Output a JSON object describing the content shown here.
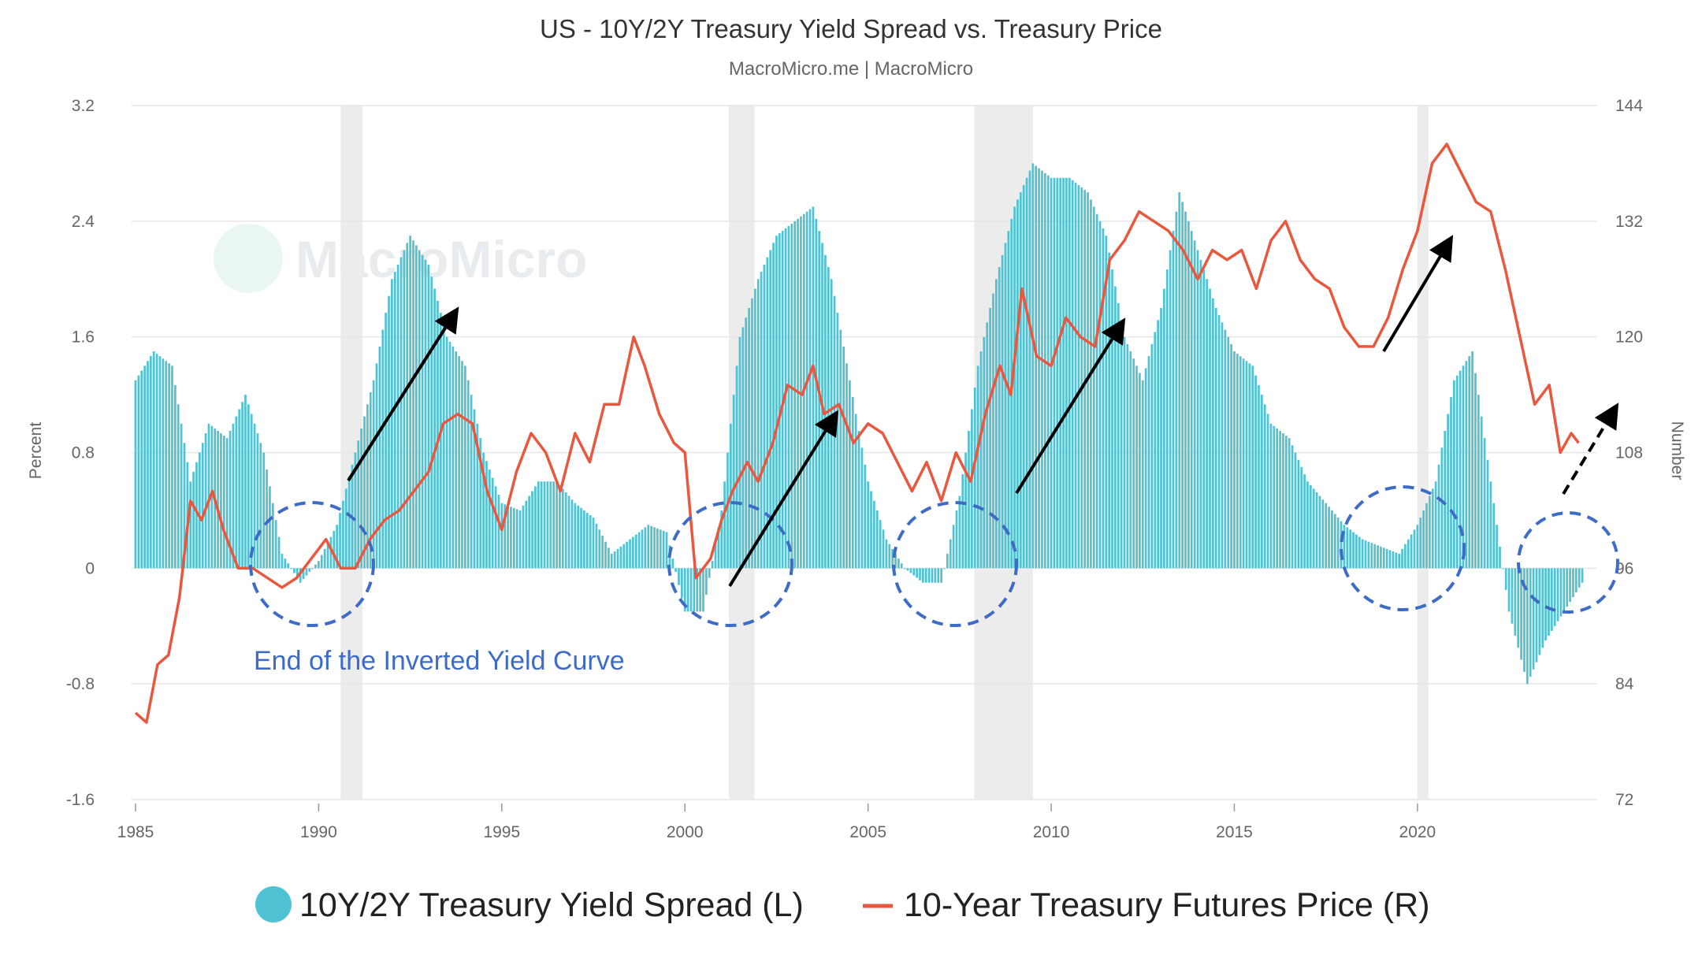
{
  "title": "US - 10Y/2Y Treasury Yield Spread vs. Treasury Price",
  "subtitle": "MacroMicro.me | MacroMicro",
  "watermark": "MacroMicro",
  "annotation": "End of the Inverted Yield Curve",
  "colors": {
    "spread": "#4fc3d3",
    "price": "#e9573f",
    "recession": "#ececec",
    "circle": "#3d6cc7",
    "arrow": "#000000",
    "grid": "#e6e6e6"
  },
  "chart_data": {
    "type": "bar+line",
    "xlabel": "",
    "ylabel_left": "Percent",
    "ylabel_right": "Number",
    "xlim": [
      1985,
      2024.8
    ],
    "ylim_left": [
      -1.6,
      3.2
    ],
    "ylim_right": [
      72,
      144
    ],
    "x_ticks": [
      "1985",
      "1990",
      "1995",
      "2000",
      "2005",
      "2010",
      "2015",
      "2020"
    ],
    "y_ticks_left": [
      "3.2",
      "2.4",
      "1.6",
      "0.8",
      "0",
      "-0.8",
      "-1.6"
    ],
    "y_ticks_right": [
      "144",
      "132",
      "120",
      "108",
      "96",
      "84",
      "72"
    ],
    "grid": true,
    "legend_position": "bottom",
    "recessions": [
      [
        1990.6,
        1991.2
      ],
      [
        2001.2,
        2001.9
      ],
      [
        2007.9,
        2009.5
      ],
      [
        2020.0,
        2020.3
      ]
    ],
    "series": [
      {
        "name": "10Y/2Y Treasury Yield Spread (L)",
        "type": "bar",
        "x": [
          1985.0,
          1985.5,
          1986.0,
          1986.5,
          1987.0,
          1987.5,
          1988.0,
          1988.5,
          1989.0,
          1989.5,
          1990.0,
          1990.5,
          1991.0,
          1991.5,
          1992.0,
          1992.5,
          1993.0,
          1993.5,
          1994.0,
          1994.5,
          1995.0,
          1995.5,
          1996.0,
          1996.5,
          1997.0,
          1997.5,
          1998.0,
          1998.5,
          1999.0,
          1999.5,
          2000.0,
          2000.5,
          2001.0,
          2001.5,
          2002.0,
          2002.5,
          2003.0,
          2003.5,
          2004.0,
          2004.5,
          2005.0,
          2005.5,
          2006.0,
          2006.5,
          2007.0,
          2007.5,
          2008.0,
          2008.5,
          2009.0,
          2009.5,
          2010.0,
          2010.5,
          2011.0,
          2011.5,
          2012.0,
          2012.5,
          2013.0,
          2013.5,
          2014.0,
          2014.5,
          2015.0,
          2015.5,
          2016.0,
          2016.5,
          2017.0,
          2017.5,
          2018.0,
          2018.5,
          2019.0,
          2019.5,
          2020.0,
          2020.5,
          2021.0,
          2021.5,
          2022.0,
          2022.5,
          2023.0,
          2023.5,
          2024.0,
          2024.5
        ],
        "values": [
          1.3,
          1.5,
          1.4,
          0.6,
          1.0,
          0.9,
          1.2,
          0.8,
          0.1,
          -0.1,
          0.05,
          0.3,
          0.8,
          1.3,
          2.0,
          2.3,
          2.1,
          1.6,
          1.4,
          0.8,
          0.45,
          0.4,
          0.6,
          0.6,
          0.45,
          0.35,
          0.1,
          0.2,
          0.3,
          0.25,
          -0.3,
          -0.3,
          0.4,
          1.6,
          2.0,
          2.3,
          2.4,
          2.5,
          2.0,
          1.3,
          0.6,
          0.2,
          0.0,
          -0.1,
          -0.1,
          0.5,
          1.4,
          2.0,
          2.5,
          2.8,
          2.7,
          2.7,
          2.6,
          2.3,
          1.6,
          1.3,
          1.8,
          2.6,
          2.2,
          1.8,
          1.5,
          1.4,
          1.0,
          0.9,
          0.6,
          0.45,
          0.3,
          0.2,
          0.15,
          0.1,
          0.3,
          0.6,
          1.3,
          1.5,
          0.6,
          -0.3,
          -0.8,
          -0.5,
          -0.3,
          -0.1
        ]
      },
      {
        "name": "10-Year Treasury Futures Price (R)",
        "type": "line",
        "x": [
          1985.0,
          1985.3,
          1985.6,
          1985.9,
          1986.2,
          1986.5,
          1986.8,
          1987.1,
          1987.4,
          1987.8,
          1988.2,
          1988.6,
          1989.0,
          1989.4,
          1989.8,
          1990.2,
          1990.6,
          1991.0,
          1991.4,
          1991.8,
          1992.2,
          1992.6,
          1993.0,
          1993.4,
          1993.8,
          1994.2,
          1994.6,
          1995.0,
          1995.4,
          1995.8,
          1996.2,
          1996.6,
          1997.0,
          1997.4,
          1997.8,
          1998.2,
          1998.6,
          1998.9,
          1999.3,
          1999.7,
          2000.0,
          2000.3,
          2000.7,
          2001.0,
          2001.3,
          2001.7,
          2002.0,
          2002.4,
          2002.8,
          2003.2,
          2003.5,
          2003.8,
          2004.2,
          2004.6,
          2005.0,
          2005.4,
          2005.8,
          2006.2,
          2006.6,
          2007.0,
          2007.4,
          2007.8,
          2008.2,
          2008.6,
          2008.9,
          2009.2,
          2009.6,
          2010.0,
          2010.4,
          2010.8,
          2011.2,
          2011.6,
          2012.0,
          2012.4,
          2012.8,
          2013.2,
          2013.6,
          2014.0,
          2014.4,
          2014.8,
          2015.2,
          2015.6,
          2016.0,
          2016.4,
          2016.8,
          2017.2,
          2017.6,
          2018.0,
          2018.4,
          2018.8,
          2019.2,
          2019.6,
          2020.0,
          2020.4,
          2020.8,
          2021.2,
          2021.6,
          2022.0,
          2022.4,
          2022.8,
          2023.2,
          2023.6,
          2023.9,
          2024.2,
          2024.4
        ],
        "values": [
          81,
          80,
          86,
          87,
          93,
          103,
          101,
          104,
          100,
          96,
          96,
          95,
          94,
          95,
          97,
          99,
          96,
          96,
          99,
          101,
          102,
          104,
          106,
          111,
          112,
          111,
          104,
          100,
          106,
          110,
          108,
          104,
          110,
          107,
          113,
          113,
          120,
          117,
          112,
          109,
          108,
          95,
          97,
          101,
          104,
          107,
          105,
          109,
          115,
          114,
          117,
          112,
          113,
          109,
          111,
          110,
          107,
          104,
          107,
          103,
          108,
          105,
          112,
          117,
          114,
          125,
          118,
          117,
          122,
          120,
          119,
          128,
          130,
          133,
          132,
          131,
          129,
          126,
          129,
          128,
          129,
          125,
          130,
          132,
          128,
          126,
          125,
          121,
          119,
          119,
          122,
          127,
          131,
          138,
          140,
          137,
          134,
          133,
          127,
          120,
          113,
          115,
          108,
          110,
          109
        ]
      }
    ]
  }
}
